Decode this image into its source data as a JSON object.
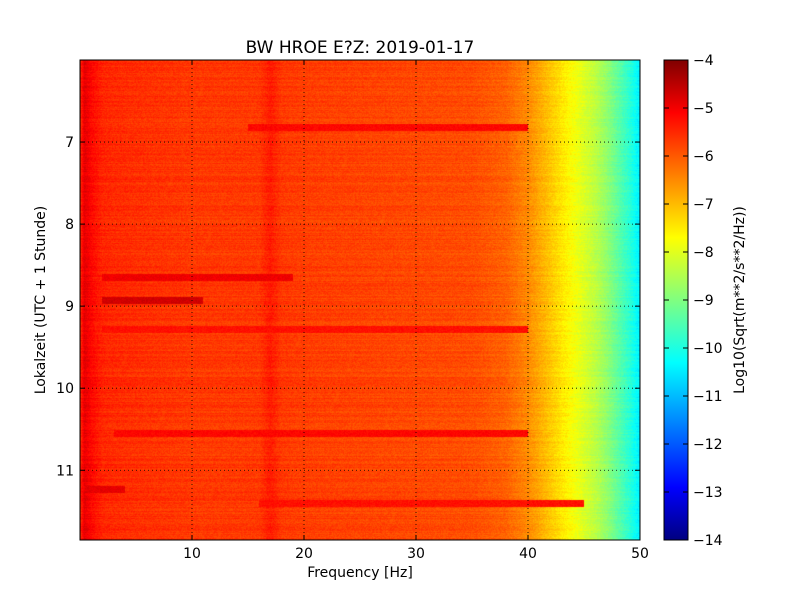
{
  "chart_data": {
    "type": "heatmap",
    "title": "BW HROE E?Z: 2019-01-17",
    "xlabel": "Frequency [Hz]",
    "ylabel": "Lokalzeit (UTC + 1 Stunde)",
    "colorbar_label": "Log10(Sqrt(m**2/s**2/Hz))",
    "colormap": "jet",
    "xlim": [
      0,
      50
    ],
    "ylim": [
      11.85,
      6.0
    ],
    "y_inverted": true,
    "clim": [
      -14,
      -4
    ],
    "x_ticks": [
      10,
      20,
      30,
      40,
      50
    ],
    "x_tick_labels": [
      "10",
      "20",
      "30",
      "40",
      "50"
    ],
    "y_ticks": [
      7,
      8,
      9,
      10,
      11
    ],
    "y_tick_labels": [
      "7",
      "8",
      "9",
      "10",
      "11"
    ],
    "colorbar_ticks": [
      -4,
      -5,
      -6,
      -7,
      -8,
      -9,
      -10,
      -11,
      -12,
      -13,
      -14
    ],
    "colorbar_tick_labels": [
      "−4",
      "−5",
      "−6",
      "−7",
      "−8",
      "−9",
      "−10",
      "−11",
      "−12",
      "−13",
      "−14"
    ],
    "grid": true,
    "frequency_profile": {
      "frequency_hz": [
        0,
        0.4,
        1,
        2,
        3,
        5,
        10,
        16,
        17,
        18,
        20,
        25,
        30,
        35,
        38,
        40,
        41,
        42,
        43,
        44,
        45,
        46,
        47,
        48,
        49,
        50
      ],
      "log10_amplitude": [
        -5.7,
        -5.0,
        -5.3,
        -5.6,
        -5.65,
        -5.7,
        -5.8,
        -5.8,
        -5.5,
        -5.8,
        -5.85,
        -5.9,
        -5.95,
        -6.0,
        -6.2,
        -6.6,
        -6.9,
        -7.2,
        -7.5,
        -7.8,
        -8.1,
        -8.4,
        -8.8,
        -9.3,
        -9.8,
        -10.4
      ]
    },
    "horizontal_bands": [
      {
        "time": 6.82,
        "freq_range": [
          15,
          40
        ],
        "log10_amplitude": -5.3
      },
      {
        "time": 8.65,
        "freq_range": [
          2,
          19
        ],
        "log10_amplitude": -5.1
      },
      {
        "time": 8.92,
        "freq_range": [
          2,
          11
        ],
        "log10_amplitude": -4.8
      },
      {
        "time": 9.28,
        "freq_range": [
          2,
          40
        ],
        "log10_amplitude": -5.4
      },
      {
        "time": 10.55,
        "freq_range": [
          3,
          40
        ],
        "log10_amplitude": -5.3
      },
      {
        "time": 11.23,
        "freq_range": [
          0.5,
          4
        ],
        "log10_amplitude": -5.0
      },
      {
        "time": 11.4,
        "freq_range": [
          16,
          45
        ],
        "log10_amplitude": -5.4
      }
    ]
  }
}
